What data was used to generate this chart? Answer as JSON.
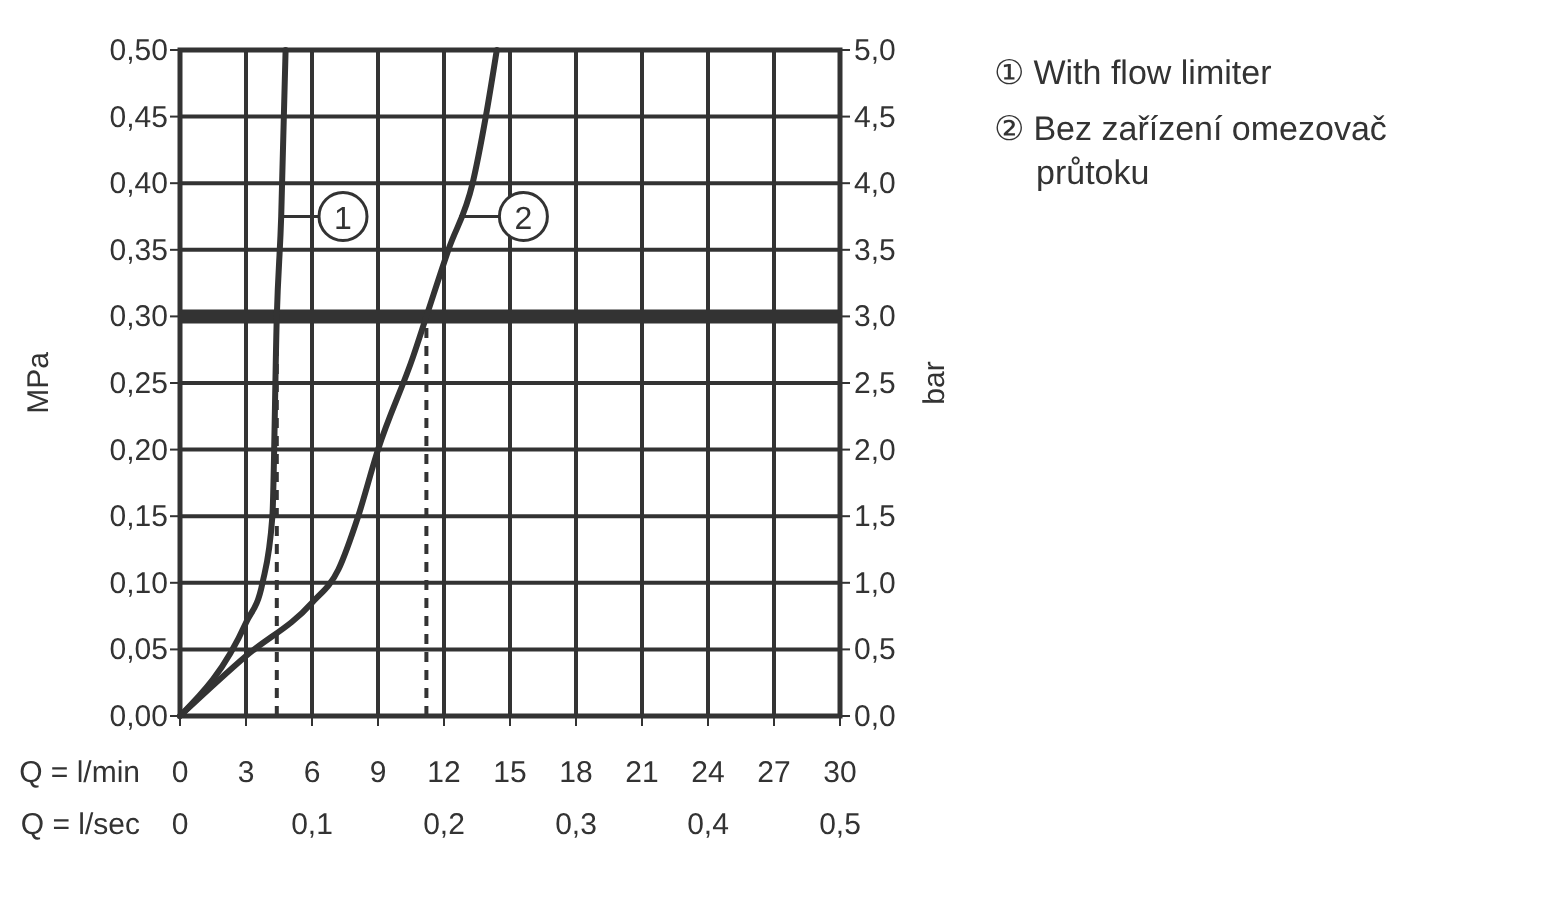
{
  "chart_data": {
    "type": "line",
    "xlabel": "Q = l/min",
    "x2label": "Q = l/sec",
    "ylabel": "MPa",
    "y2label": "bar",
    "xlim": [
      0,
      30
    ],
    "xticks": [
      0,
      3,
      6,
      9,
      12,
      15,
      18,
      21,
      24,
      27,
      30
    ],
    "x2lim": [
      0,
      0.5
    ],
    "x2ticks": [
      0,
      {
        "value": 0.1,
        "label": "0,1"
      },
      {
        "value": 0.2,
        "label": "0,2"
      },
      {
        "value": 0.3,
        "label": "0,3"
      },
      {
        "value": 0.4,
        "label": "0,4"
      },
      {
        "value": 0.5,
        "label": "0,5"
      }
    ],
    "ylim": [
      0,
      0.5
    ],
    "yticks": [
      {
        "value": 0,
        "label": "0,00"
      },
      {
        "value": 0.05,
        "label": "0,05"
      },
      {
        "value": 0.1,
        "label": "0,10"
      },
      {
        "value": 0.15,
        "label": "0,15"
      },
      {
        "value": 0.2,
        "label": "0,20"
      },
      {
        "value": 0.25,
        "label": "0,25"
      },
      {
        "value": 0.3,
        "label": "0,30"
      },
      {
        "value": 0.35,
        "label": "0,35"
      },
      {
        "value": 0.4,
        "label": "0,40"
      },
      {
        "value": 0.45,
        "label": "0,45"
      },
      {
        "value": 0.5,
        "label": "0,50"
      }
    ],
    "y2lim": [
      0,
      5
    ],
    "y2ticks": [
      {
        "value": 0,
        "label": "0,0"
      },
      {
        "value": 0.5,
        "label": "0,5"
      },
      {
        "value": 1,
        "label": "1,0"
      },
      {
        "value": 1.5,
        "label": "1,5"
      },
      {
        "value": 2,
        "label": "2,0"
      },
      {
        "value": 2.5,
        "label": "2,5"
      },
      {
        "value": 3,
        "label": "3,0"
      },
      {
        "value": 3.5,
        "label": "3,5"
      },
      {
        "value": 4,
        "label": "4,0"
      },
      {
        "value": 4.5,
        "label": "4,5"
      },
      {
        "value": 5,
        "label": "5,0"
      }
    ],
    "grid": true,
    "legend": "right",
    "line_style": "solid",
    "series": [
      {
        "name": "① With flow limiter",
        "color": "#333333",
        "x": [
          0,
          3,
          3.75,
          4.2,
          4.4,
          4.6,
          4.8
        ],
        "values": [
          0,
          0.07,
          0.1,
          0.15,
          0.3,
          0.375,
          0.5
        ]
      },
      {
        "name": "② Bez zařízení omezovač průtoku",
        "color": "#333333",
        "x": [
          0,
          3,
          6,
          7.2,
          8.1,
          9,
          10.6,
          11.2,
          12.2,
          13.3,
          13.9,
          14.4
        ],
        "values": [
          0,
          0.045,
          0.085,
          0.11,
          0.15,
          0.2,
          0.27,
          0.3,
          0.35,
          0.4,
          0.45,
          0.5
        ]
      }
    ],
    "ref_lines": [
      {
        "axis": "y",
        "value": 0.3,
        "color": "#333333",
        "line_style": "solid"
      },
      {
        "axis": "x",
        "value": 4.4,
        "color": "#333333",
        "line_style": "dashed"
      },
      {
        "axis": "x",
        "value": 11.2,
        "color": "#333333",
        "line_style": "dashed"
      }
    ],
    "annotations": [
      {
        "text": "1",
        "x": 4.5,
        "y": 0.375
      },
      {
        "text": "2",
        "x": 12.7,
        "y": 0.375
      }
    ]
  }
}
